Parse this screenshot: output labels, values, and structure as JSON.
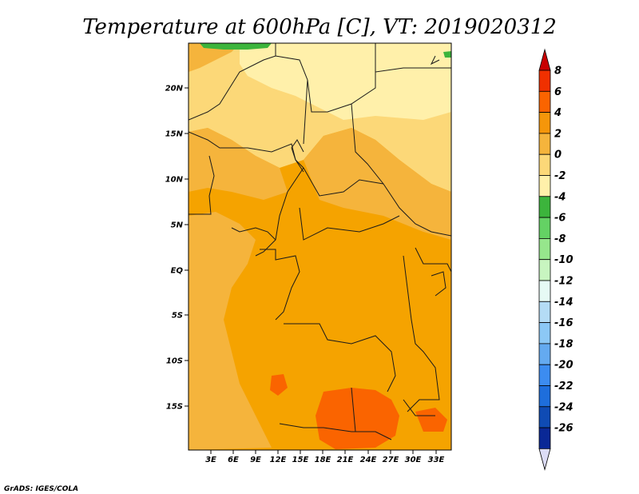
{
  "title": "Temperature at 600hPa [C], VT: 2019020312",
  "credit": "GrADS: IGES/COLA",
  "map": {
    "lat_ticks": [
      "20N",
      "15N",
      "10N",
      "5N",
      "EQ",
      "5S",
      "10S",
      "15S"
    ],
    "lon_ticks": [
      "3E",
      "6E",
      "9E",
      "12E",
      "15E",
      "18E",
      "21E",
      "24E",
      "27E",
      "30E",
      "33E"
    ]
  },
  "colorbar": {
    "labels": [
      "8",
      "6",
      "4",
      "2",
      "0",
      "-2",
      "-4",
      "-6",
      "-8",
      "-10",
      "-12",
      "-14",
      "-16",
      "-18",
      "-20",
      "-22",
      "-24",
      "-26"
    ],
    "colors": [
      "#f03000",
      "#fa6400",
      "#f5960a",
      "#f5b43c",
      "#fcd878",
      "#fff0aa",
      "#3cb43c",
      "#64d264",
      "#96e68c",
      "#c8f5c0",
      "#e6faf5",
      "#b4dcf5",
      "#8cc8f5",
      "#64aaf0",
      "#3c8cf0",
      "#1e6edc",
      "#0f4bb4",
      "#0a2896"
    ],
    "top_arrow_color": "#c80000",
    "bottom_arrow_color": "#dcdcf5"
  }
}
